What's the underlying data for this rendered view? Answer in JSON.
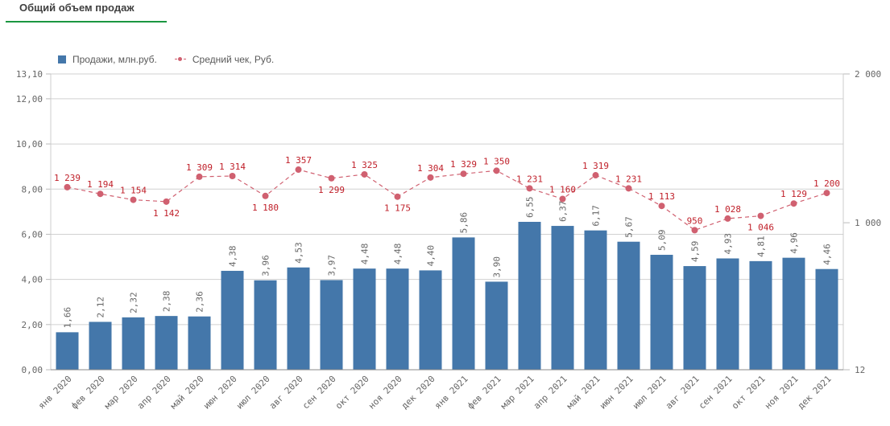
{
  "tab": {
    "title": "Общий объем продаж"
  },
  "colors": {
    "bars": "#4477aa",
    "line": "#d06070",
    "line_label": "#c0202a",
    "accent": "#1a9641"
  },
  "chart_data": {
    "type": "bar+line",
    "categories": [
      "янв 2020",
      "фев 2020",
      "мар 2020",
      "апр 2020",
      "май 2020",
      "июн 2020",
      "июл 2020",
      "авг 2020",
      "сен 2020",
      "окт 2020",
      "ноя 2020",
      "дек 2020",
      "янв 2021",
      "фев 2021",
      "мар 2021",
      "апр 2021",
      "май 2021",
      "июн 2021",
      "июл 2021",
      "авг 2021",
      "сен 2021",
      "окт 2021",
      "ноя 2021",
      "дек 2021"
    ],
    "series": [
      {
        "name": "Продажи, млн.руб.",
        "type": "bar",
        "axis": "left",
        "values": [
          1.66,
          2.12,
          2.32,
          2.38,
          2.36,
          4.38,
          3.96,
          4.53,
          3.97,
          4.48,
          4.48,
          4.4,
          5.86,
          3.9,
          6.55,
          6.37,
          6.17,
          5.67,
          5.09,
          4.59,
          4.93,
          4.81,
          4.96,
          4.46
        ],
        "labels": [
          "1,66",
          "2,12",
          "2,32",
          "2,38",
          "2,36",
          "4,38",
          "3,96",
          "4,53",
          "3,97",
          "4,48",
          "4,48",
          "4,40",
          "5,86",
          "3,90",
          "6,55",
          "6,37",
          "6,17",
          "5,67",
          "5,09",
          "4,59",
          "4,93",
          "4,81",
          "4,96",
          "4,46"
        ]
      },
      {
        "name": "Средний чек, Руб.",
        "type": "line",
        "axis": "right",
        "values": [
          1239,
          1194,
          1154,
          1142,
          1309,
          1314,
          1180,
          1357,
          1299,
          1325,
          1175,
          1304,
          1329,
          1350,
          1231,
          1160,
          1319,
          1231,
          1113,
          950,
          1028,
          1046,
          1129,
          1200
        ],
        "labels": [
          "1 239",
          "1 194",
          "1 154",
          "1 142",
          "1 309",
          "1 314",
          "1 180",
          "1 357",
          "1 299",
          "1 325",
          "1 175",
          "1 304",
          "1 329",
          "1 350",
          "1 231",
          "1 160",
          "1 319",
          "1 231",
          "1 113",
          "950",
          "1 028",
          "1 046",
          "1 129",
          "1 200"
        ]
      }
    ],
    "left_axis": {
      "ylim": [
        0,
        13.1
      ],
      "ticks": [
        0,
        2,
        4,
        6,
        8,
        10,
        12,
        13.1
      ],
      "tick_labels": [
        "0,00",
        "2,00",
        "4,00",
        "6,00",
        "8,00",
        "10,00",
        "12,00",
        "13,10"
      ]
    },
    "right_axis": {
      "ylim": [
        12,
        2000
      ],
      "ticks": [
        12,
        1000,
        2000
      ],
      "tick_labels": [
        "12",
        "1 000",
        "2 000"
      ]
    },
    "grid": true,
    "legend": "top-left"
  }
}
